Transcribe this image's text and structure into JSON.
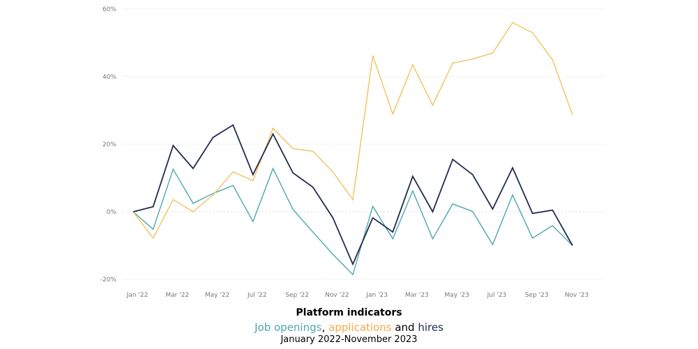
{
  "chart_data": {
    "type": "line",
    "title": "Platform indicators",
    "subtitle": {
      "part1": "Job openings",
      "sep1": ", ",
      "part2": "applications",
      "sep2": " and ",
      "part3": "hires"
    },
    "period": "January 2022-November 2023",
    "x": [
      "Jan '22",
      "Feb '22",
      "Mar '22",
      "Apr '22",
      "May '22",
      "Jun '22",
      "Jul '22",
      "Aug '22",
      "Sep '22",
      "Oct '22",
      "Nov '22",
      "Dec '22",
      "Jan '23",
      "Feb '23",
      "Mar '23",
      "Apr '23",
      "May '23",
      "Jun '23",
      "Jul '23",
      "Aug '23",
      "Sep '23",
      "Oct '23",
      "Nov '23"
    ],
    "x_tick_labels": [
      "Jan '22",
      "Mar '22",
      "May '22",
      "Jul '22",
      "Sep '22",
      "Nov '22",
      "Jan '23",
      "Mar '23",
      "May '23",
      "Jul '23",
      "Sep '23",
      "Nov '23"
    ],
    "y_tick_labels": [
      "60%",
      "40%",
      "20%",
      "0%",
      "-20%"
    ],
    "y_ticks": [
      60,
      40,
      20,
      0,
      -20
    ],
    "ylim": [
      -20,
      60
    ],
    "grid": true,
    "legend": "none (colored words in subtitle)",
    "series": [
      {
        "name": "Job openings",
        "color": "#4ba8ad",
        "values": [
          0,
          -5.2,
          12.6,
          2.5,
          5.4,
          7.8,
          -2.9,
          12.8,
          0.7,
          -6,
          -12.6,
          -18.6,
          1.6,
          -8,
          6.2,
          -8,
          2.3,
          0.1,
          -9.7,
          5,
          -7.8,
          -4.1,
          -10
        ]
      },
      {
        "name": "applications",
        "color": "#f2c25c",
        "values": [
          0,
          -7.8,
          3.6,
          0,
          5,
          11.8,
          9.2,
          24.7,
          18.7,
          17.9,
          11.8,
          3.6,
          46.2,
          28.9,
          43.5,
          31.5,
          44,
          45.2,
          47,
          56,
          53,
          45,
          28.7
        ]
      },
      {
        "name": "hires",
        "color": "#1f2a4d",
        "values": [
          0,
          1.5,
          19.6,
          12.8,
          22,
          25.7,
          11,
          23,
          11.5,
          7.3,
          -1.8,
          -15.5,
          -1.8,
          -6,
          10.5,
          0,
          15.5,
          11,
          0.8,
          13,
          -0.5,
          0.5,
          -10
        ]
      }
    ],
    "subtitle_colors": {
      "part1": "#4ba8ad",
      "part2": "#f5a94a",
      "part3": "#1f2a4d"
    }
  }
}
